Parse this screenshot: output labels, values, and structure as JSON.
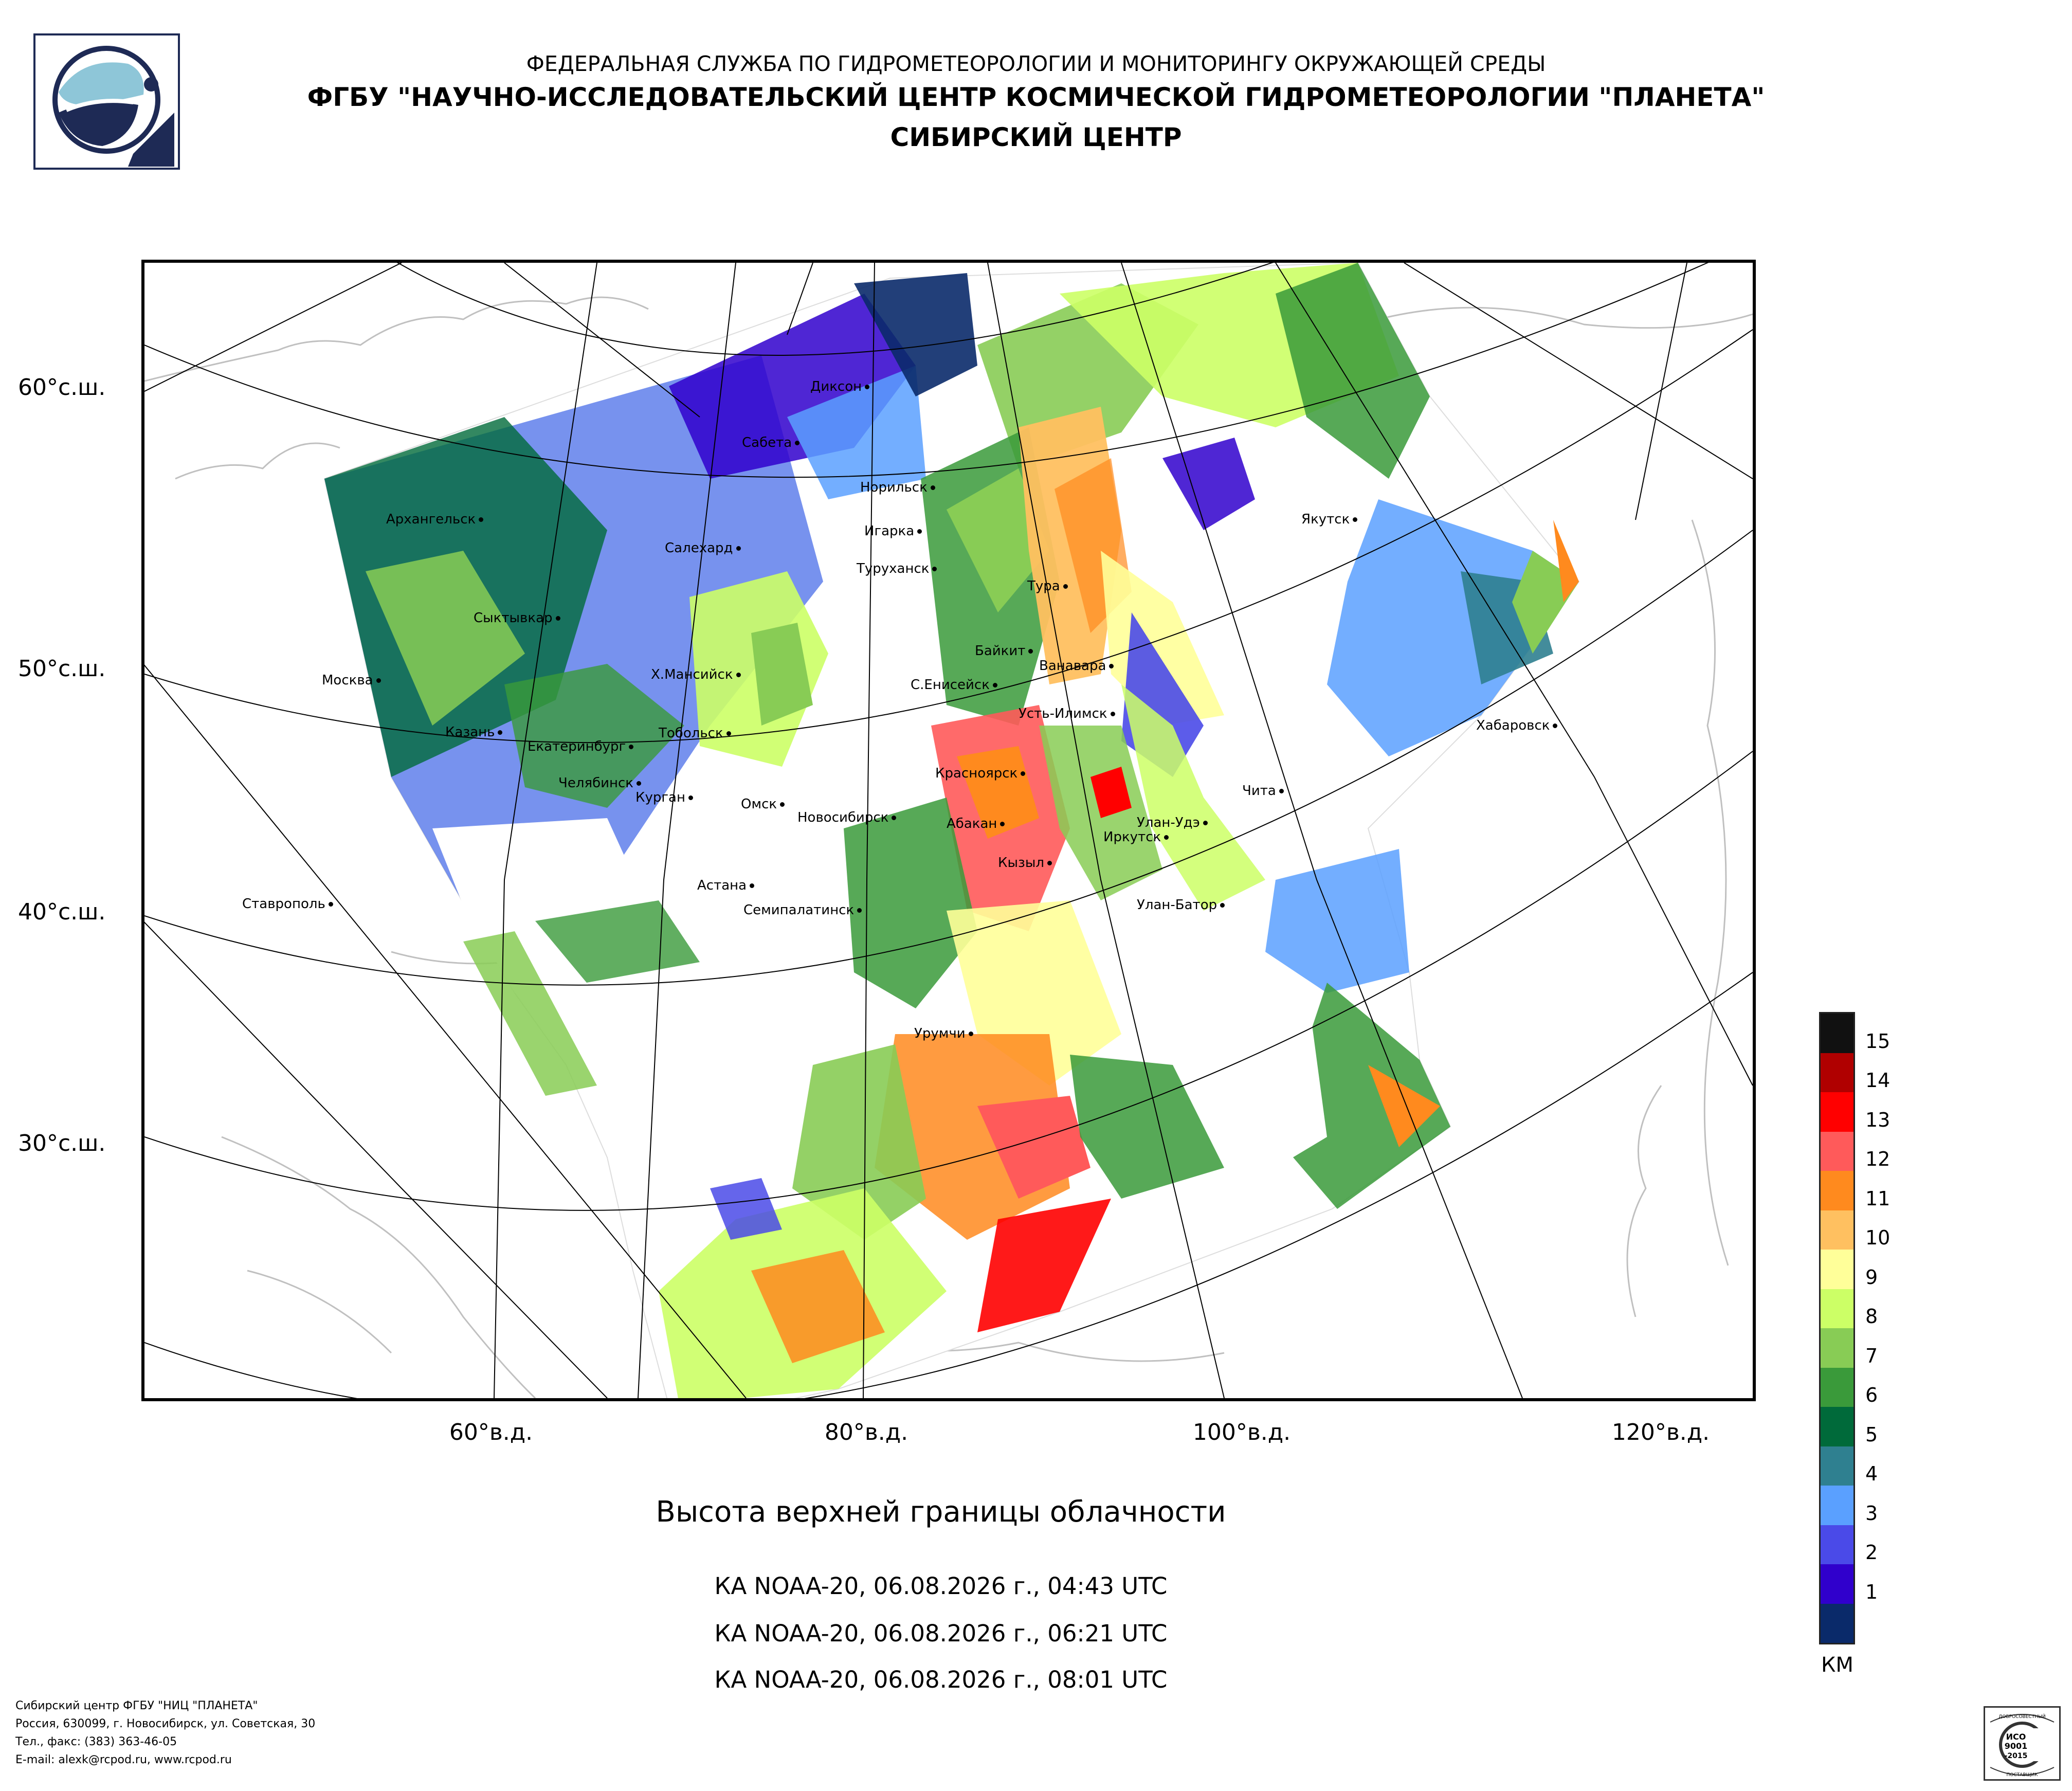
{
  "header": {
    "line1": "ФЕДЕРАЛЬНАЯ СЛУЖБА ПО ГИДРОМЕТЕОРОЛОГИИ И МОНИТОРИНГУ ОКРУЖАЮЩЕЙ СРЕДЫ",
    "line2": "ФГБУ \"НАУЧНО-ИССЛЕДОВАТЕЛЬСКИЙ ЦЕНТР КОСМИЧЕСКОЙ ГИДРОМЕТЕОРОЛОГИИ \"ПЛАНЕТА\"",
    "line3": "СИБИРСКИЙ ЦЕНТР"
  },
  "map": {
    "lat_labels": [
      "60°с.ш.",
      "50°с.ш.",
      "40°с.ш.",
      "30°с.ш."
    ],
    "lon_labels": [
      "60°в.д.",
      "80°в.д.",
      "100°в.д.",
      "120°в.д."
    ],
    "cities": [
      "Архангельск",
      "Сыктывкар",
      "Москва",
      "Казань",
      "Екатеринбург",
      "Челябинск",
      "Курган",
      "Тобольск",
      "Х.Мансийск",
      "Салехард",
      "Сабета",
      "Диксон",
      "Норильск",
      "Игарка",
      "Туруханск",
      "Тура",
      "Байкит",
      "Ванавара",
      "С.Енисейск",
      "Усть-Илимск",
      "Красноярск",
      "Омск",
      "Новосибирск",
      "Абакан",
      "Кызыл",
      "Иркутск",
      "Улан-Удэ",
      "Чита",
      "Якутск",
      "Хабаровск",
      "Астана",
      "Семипалатинск",
      "Улан-Батор",
      "Урумчи",
      "Ставрополь"
    ]
  },
  "legend": {
    "labels": [
      "15",
      "14",
      "13",
      "12",
      "11",
      "10",
      "9",
      "8",
      "7",
      "6",
      "5",
      "4",
      "3",
      "2",
      "1"
    ],
    "colors": [
      "#111111",
      "#b00000",
      "#ff0000",
      "#ff5a5a",
      "#ff8a1e",
      "#ffc060",
      "#ffff99",
      "#ccff66",
      "#88cc55",
      "#3a9a3a",
      "#006a3a",
      "#2f8090",
      "#5aa0ff",
      "#4a4ae8",
      "#3000cc",
      "#0a2a6a"
    ],
    "units": "КМ"
  },
  "caption": {
    "title": "Высота верхней границы облачности",
    "passes": [
      "КА NOAA-20, 06.08.2026 г., 04:43 UTC",
      "КА NOAA-20, 06.08.2026 г., 06:21 UTC",
      "КА NOAA-20, 06.08.2026 г., 08:01 UTC"
    ]
  },
  "footer": {
    "lines": [
      "Сибирский центр ФГБУ \"НИЦ \"ПЛАНЕТА\"",
      "Россия, 630099, г. Новосибирск, ул. Советская, 30",
      "Тел., факс: (383) 363-46-05",
      "E-mail: alexk@rcpod.ru, www.rcpod.ru"
    ]
  },
  "cert": {
    "top": "ДОБРОСОВЕСТНЫЙ",
    "line1": "ИСО",
    "line2": "9001",
    "line3": "-2015",
    "bottom": "ПОСТАВЩИК"
  }
}
